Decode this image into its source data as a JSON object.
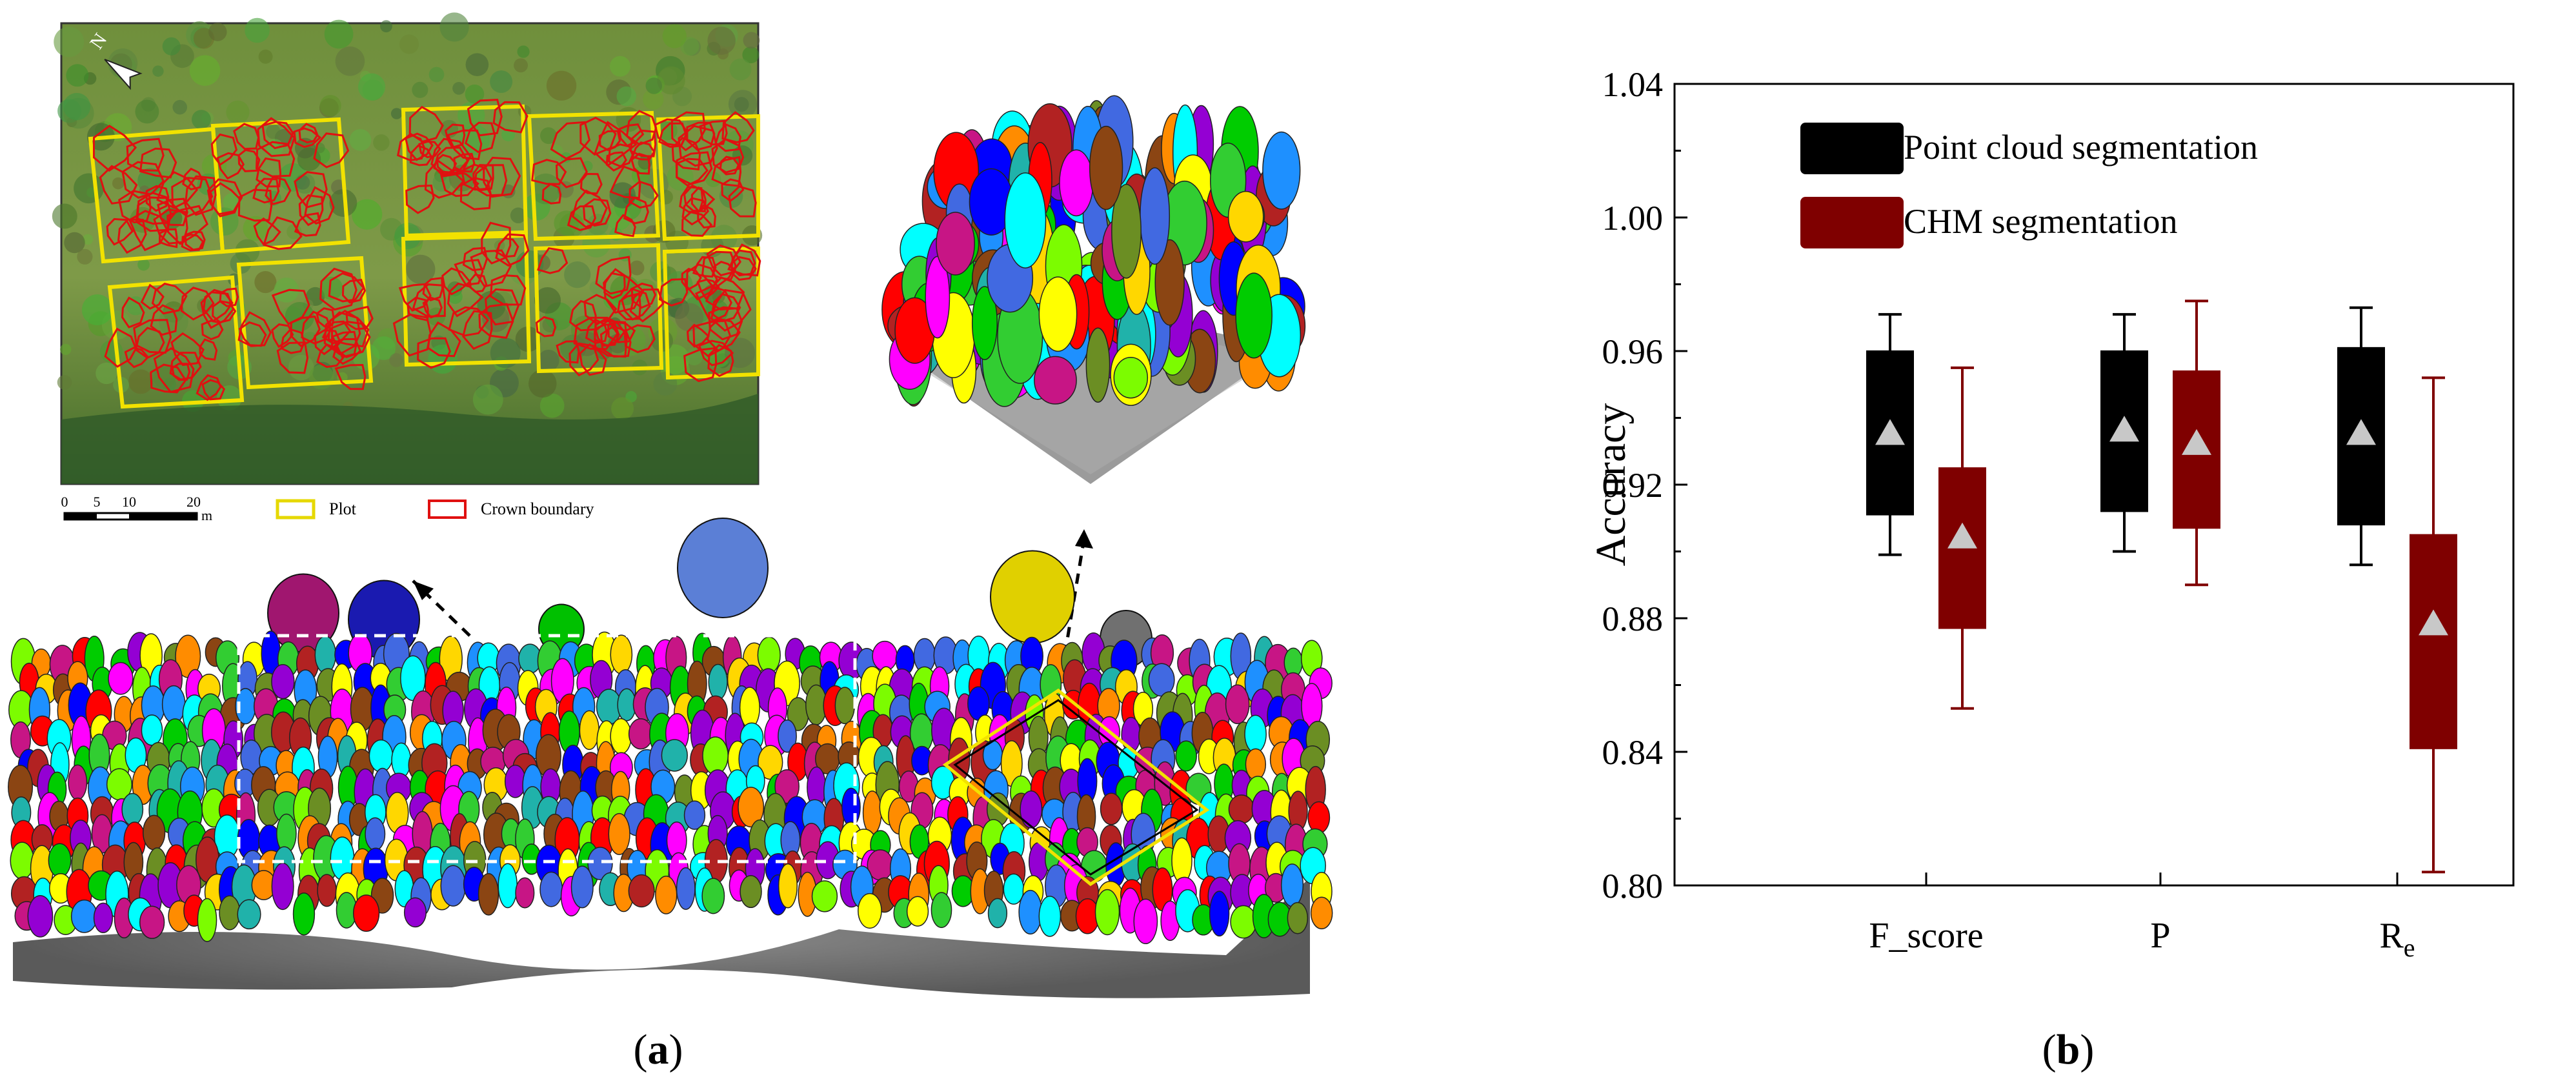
{
  "panel_a": {
    "label": "(a)",
    "label_letter": "a",
    "scale_bar": {
      "ticks": [
        "0",
        "5",
        "10",
        "20"
      ],
      "unit": "m"
    },
    "legend": {
      "plot": "Plot",
      "crown": "Crown boundary"
    },
    "north_arrow": "N"
  },
  "panel_b": {
    "label": "(b)",
    "label_letter": "b"
  },
  "chart_data": {
    "type": "box",
    "title": "",
    "ylabel": "Accuracy",
    "xlabel": "",
    "categories": [
      "F_score",
      "P",
      "R_e"
    ],
    "category_labels": [
      {
        "main": "F_score",
        "sub": ""
      },
      {
        "main": "P",
        "sub": ""
      },
      {
        "main": "R",
        "sub": "e"
      }
    ],
    "ylim": [
      0.8,
      1.04
    ],
    "yticks": [
      "0.80",
      "0.84",
      "0.88",
      "0.92",
      "0.96",
      "1.00",
      "1.04"
    ],
    "ytick_values": [
      0.8,
      0.84,
      0.88,
      0.92,
      0.96,
      1.0,
      1.04
    ],
    "legend_placement": "top-left",
    "grid": false,
    "series": [
      {
        "name": "Point cloud segmentation",
        "color": "#000000",
        "boxes": [
          {
            "min": 0.899,
            "q1": 0.911,
            "q3": 0.96,
            "max": 0.971,
            "mean": 0.935
          },
          {
            "min": 0.9,
            "q1": 0.912,
            "q3": 0.96,
            "max": 0.971,
            "mean": 0.936
          },
          {
            "min": 0.896,
            "q1": 0.908,
            "q3": 0.961,
            "max": 0.973,
            "mean": 0.935
          }
        ]
      },
      {
        "name": "CHM segmentation",
        "color": "#7f0000",
        "boxes": [
          {
            "min": 0.853,
            "q1": 0.877,
            "q3": 0.925,
            "max": 0.955,
            "mean": 0.904
          },
          {
            "min": 0.89,
            "q1": 0.907,
            "q3": 0.954,
            "max": 0.975,
            "mean": 0.932
          },
          {
            "min": 0.804,
            "q1": 0.841,
            "q3": 0.905,
            "max": 0.952,
            "mean": 0.878
          }
        ]
      }
    ]
  }
}
